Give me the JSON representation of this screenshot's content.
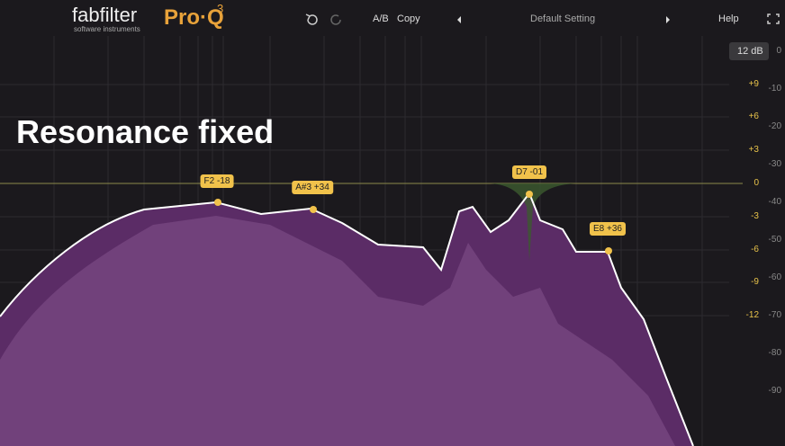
{
  "logo": {
    "brand": "fabfilter",
    "tagline": "software instruments",
    "product": "Pro·Q",
    "version": "3"
  },
  "toolbar": {
    "ab": "A/B",
    "copy": "Copy",
    "preset": "Default Setting",
    "help": "Help"
  },
  "range": "12 dB",
  "gain_scale": [
    "+9",
    "+6",
    "+3",
    "0",
    "-3",
    "-6",
    "-9",
    "-12"
  ],
  "analyzer_scale": [
    "0",
    "-10",
    "-20",
    "-30",
    "-40",
    "-50",
    "-60",
    "-70",
    "-80",
    "-90"
  ],
  "overlay": "Resonance fixed",
  "bands": [
    {
      "label": "F2 -18"
    },
    {
      "label": "A#3 +34"
    },
    {
      "label": "D7 -01"
    },
    {
      "label": "E8 +36"
    }
  ]
}
